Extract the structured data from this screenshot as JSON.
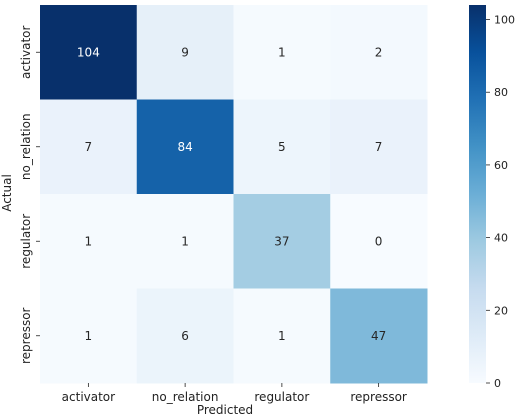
{
  "chart_data": {
    "type": "heatmap",
    "title": "",
    "xlabel": "Predicted",
    "ylabel": "Actual",
    "x_categories": [
      "activator",
      "no_relation",
      "regulator",
      "repressor"
    ],
    "y_categories": [
      "activator",
      "no_relation",
      "regulator",
      "repressor"
    ],
    "values": [
      [
        104,
        9,
        1,
        2
      ],
      [
        7,
        84,
        5,
        7
      ],
      [
        1,
        1,
        37,
        0
      ],
      [
        1,
        6,
        1,
        47
      ]
    ],
    "colorscale": "Blues",
    "vmin": 0,
    "vmax": 104,
    "colorbar_ticks": [
      0,
      20,
      40,
      60,
      80,
      100
    ]
  }
}
